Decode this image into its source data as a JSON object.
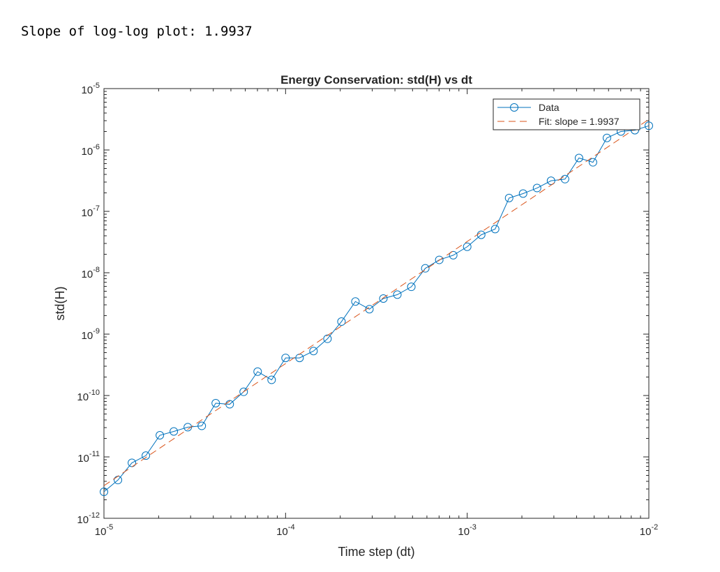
{
  "console": {
    "output_line": "Slope of log-log plot: 1.9937"
  },
  "chart_data": {
    "type": "line",
    "title": "Energy Conservation: std(H) vs dt",
    "xlabel": "Time step (dt)",
    "ylabel": "std(H)",
    "xscale": "log",
    "yscale": "log",
    "xlim": [
      1e-05,
      0.01
    ],
    "ylim": [
      1e-12,
      1e-05
    ],
    "grid": false,
    "legend_position": "top-right",
    "x_ticks": [
      {
        "value": 1e-05,
        "base": "10",
        "exp": "-5"
      },
      {
        "value": 0.0001,
        "base": "10",
        "exp": "-4"
      },
      {
        "value": 0.001,
        "base": "10",
        "exp": "-3"
      },
      {
        "value": 0.01,
        "base": "10",
        "exp": "-2"
      }
    ],
    "y_ticks": [
      {
        "value": 1e-12,
        "base": "10",
        "exp": "-12"
      },
      {
        "value": 1e-11,
        "base": "10",
        "exp": "-11"
      },
      {
        "value": 1e-10,
        "base": "10",
        "exp": "-10"
      },
      {
        "value": 1e-09,
        "base": "10",
        "exp": "-9"
      },
      {
        "value": 1e-08,
        "base": "10",
        "exp": "-8"
      },
      {
        "value": 1e-07,
        "base": "10",
        "exp": "-7"
      },
      {
        "value": 1e-06,
        "base": "10",
        "exp": "-6"
      },
      {
        "value": 1e-05,
        "base": "10",
        "exp": "-5"
      }
    ],
    "series": [
      {
        "name": "Data",
        "color": "#0072BD",
        "marker": "circle",
        "line_style": "solid",
        "x": [
          1e-05,
          1.194e-05,
          1.425e-05,
          1.701e-05,
          2.031e-05,
          2.424e-05,
          2.894e-05,
          3.455e-05,
          4.125e-05,
          4.924e-05,
          5.878e-05,
          7.017e-05,
          8.377e-05,
          0.0001,
          0.0001194,
          0.0001425,
          0.0001701,
          0.0002031,
          0.0002424,
          0.0002894,
          0.0003455,
          0.0004125,
          0.0004924,
          0.0005878,
          0.0007017,
          0.0008377,
          0.001,
          0.001194,
          0.001425,
          0.001701,
          0.002031,
          0.002424,
          0.002894,
          0.003455,
          0.004125,
          0.004924,
          0.005878,
          0.007017,
          0.008377,
          0.01
        ],
        "y": [
          2.7e-12,
          4.2e-12,
          8e-12,
          1.05e-11,
          2.25e-11,
          2.6e-11,
          3.05e-11,
          3.2e-11,
          7.5e-11,
          7.2e-11,
          1.15e-10,
          2.45e-10,
          1.8e-10,
          4.1e-10,
          4.1e-10,
          5.3e-10,
          8.4e-10,
          1.6e-09,
          3.4e-09,
          2.55e-09,
          3.8e-09,
          4.4e-09,
          5.9e-09,
          1.18e-08,
          1.62e-08,
          1.93e-08,
          2.65e-08,
          4.15e-08,
          5.15e-08,
          1.65e-07,
          1.95e-07,
          2.4e-07,
          3.15e-07,
          3.35e-07,
          7.4e-07,
          6.3e-07,
          1.57e-06,
          2e-06,
          2.1e-06,
          2.48e-06
        ]
      },
      {
        "name": "Fit: slope = 1.9937",
        "color": "#D95319",
        "marker": "none",
        "line_style": "dashed",
        "x": [
          1e-05,
          0.01
        ],
        "y": [
          3.4e-12,
          3.15e-06
        ]
      }
    ]
  }
}
